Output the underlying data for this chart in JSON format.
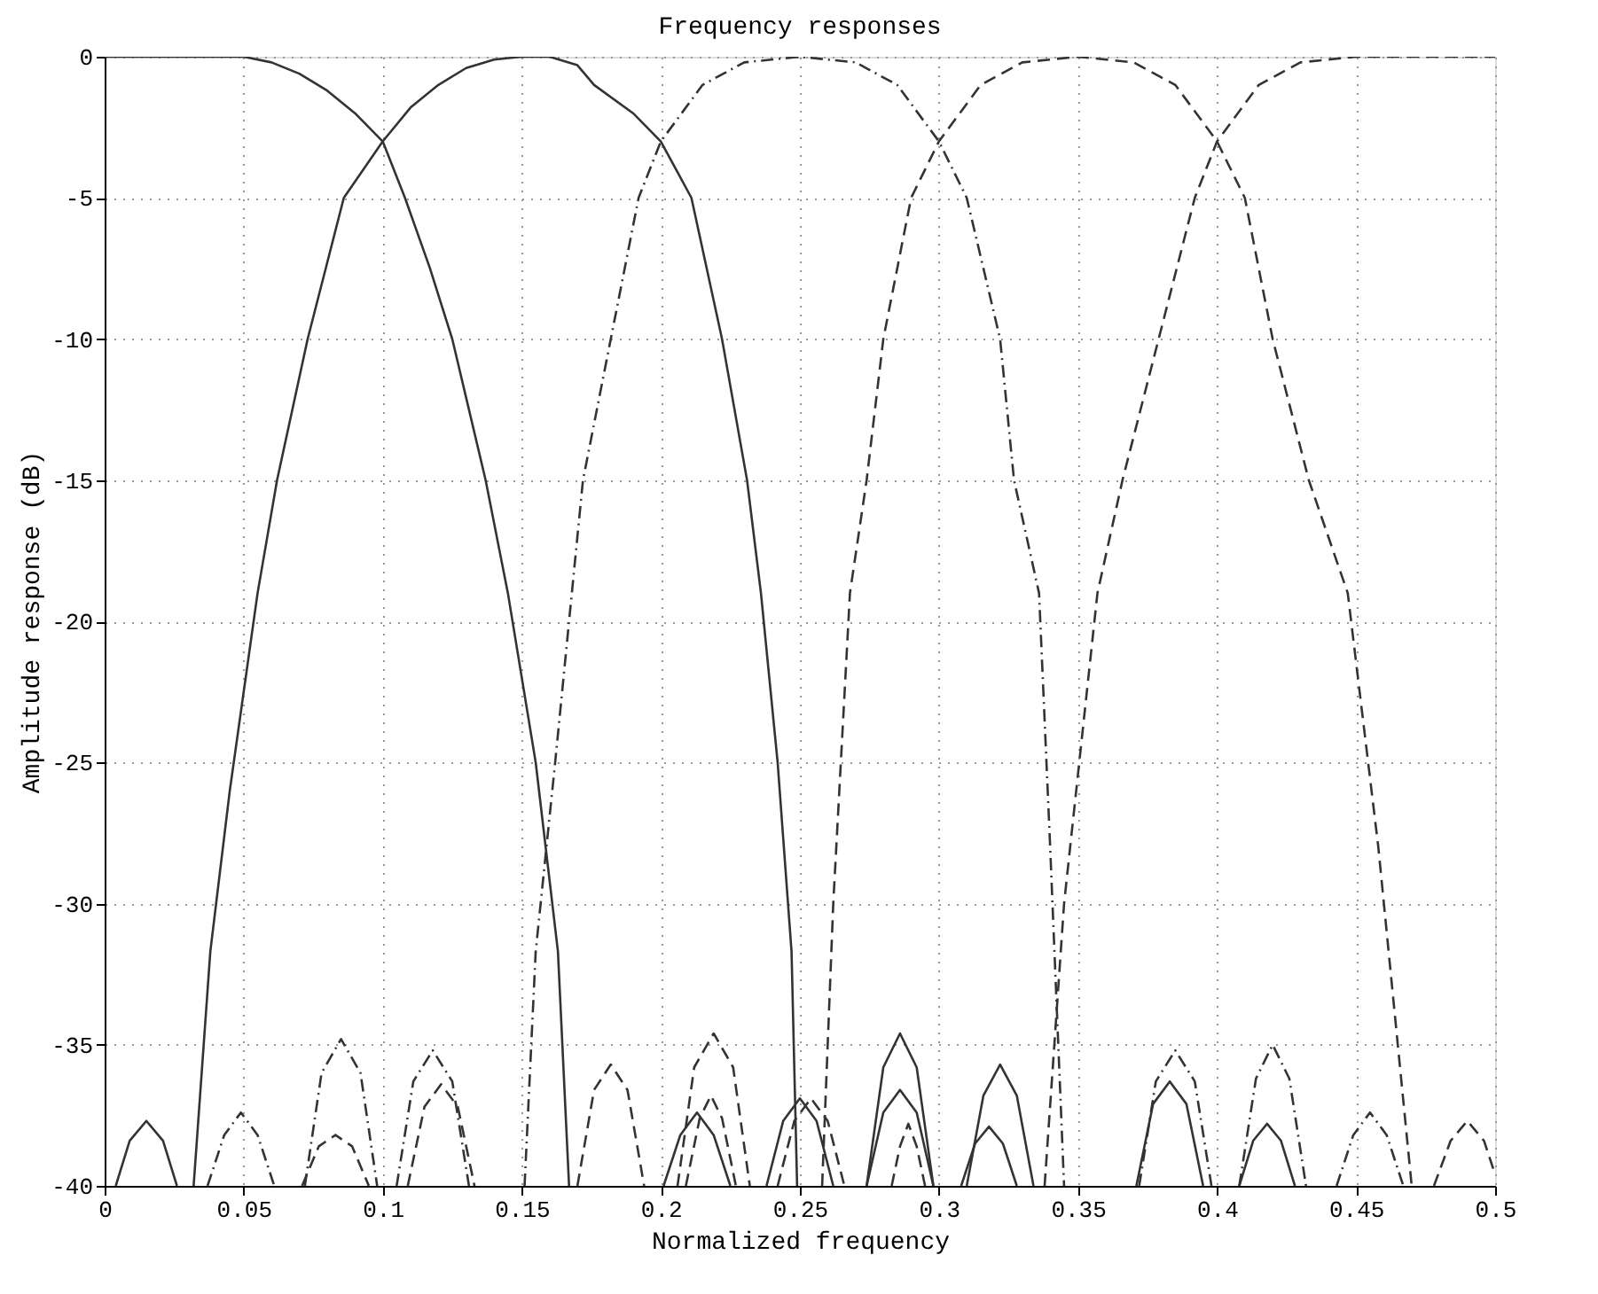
{
  "chart_data": {
    "type": "line",
    "title": "Frequency responses",
    "xlabel": "Normalized frequency",
    "ylabel": "Amplitude response (dB)",
    "xlim": [
      0,
      0.5
    ],
    "ylim": [
      -40,
      0
    ],
    "xticks": [
      0,
      0.05,
      0.1,
      0.15,
      0.2,
      0.25,
      0.3,
      0.35,
      0.4,
      0.45,
      0.5
    ],
    "yticks": [
      -40,
      -35,
      -30,
      -25,
      -20,
      -15,
      -10,
      -5,
      0
    ],
    "grid": true,
    "marker": "none",
    "series": [
      {
        "line_style": "solid",
        "color": "#333333",
        "x": [
          0,
          0.05,
          0.06,
          0.07,
          0.08,
          0.09,
          0.1,
          0.108,
          0.117,
          0.125,
          0.131,
          0.137,
          0.145,
          0.155,
          0.163,
          0.167,
          0.17,
          0.201,
          0.207,
          0.213,
          0.219,
          0.225,
          0.23,
          0.238,
          0.244,
          0.25,
          0.256,
          0.262,
          0.268,
          0.274,
          0.28,
          0.286,
          0.292,
          0.298,
          0.302,
          0.308,
          0.313,
          0.318,
          0.323,
          0.328,
          0.35,
          0.371,
          0.377,
          0.383,
          0.389,
          0.395,
          0.4,
          0.408,
          0.413,
          0.418,
          0.423,
          0.428
        ],
        "values": [
          0,
          0,
          -0.2,
          -0.6,
          -1.2,
          -2,
          -3,
          -5,
          -7.5,
          -10,
          -12.5,
          -15,
          -19,
          -25,
          -31.7,
          -40,
          null,
          -40,
          -38.2,
          -37.4,
          -38.2,
          -40,
          null,
          -40,
          -37.7,
          -36.9,
          -37.7,
          -40,
          null,
          -40,
          -37.4,
          -36.6,
          -37.4,
          -40,
          null,
          -40,
          -38.5,
          -37.9,
          -38.5,
          -40,
          null,
          -40,
          -37.1,
          -36.3,
          -37.1,
          -40,
          null,
          -40,
          -38.4,
          -37.8,
          -38.4,
          -40
        ]
      },
      {
        "line_style": "solid",
        "color": "#333333",
        "x": [
          0.004,
          0.009,
          0.015,
          0.021,
          0.026,
          0.03,
          0.032,
          0.038,
          0.045,
          0.055,
          0.062,
          0.073,
          0.086,
          0.1,
          0.11,
          0.12,
          0.13,
          0.14,
          0.15,
          0.16,
          0.17,
          0.176,
          0.19,
          0.2,
          0.211,
          0.222,
          0.231,
          0.236,
          0.242,
          0.247,
          0.249,
          0.26,
          0.274,
          0.28,
          0.286,
          0.292,
          0.298,
          0.304,
          0.31,
          0.316,
          0.322,
          0.328,
          0.334
        ],
        "values": [
          -40,
          -38.4,
          -37.7,
          -38.4,
          -40,
          null,
          -40,
          -31.7,
          -26,
          -19,
          -15,
          -10,
          -5,
          -3,
          -1.8,
          -1,
          -0.4,
          -0.1,
          0,
          0,
          -0.3,
          -1,
          -2,
          -3,
          -5,
          -10,
          -15,
          -19,
          -25,
          -31.7,
          -40,
          null,
          -40,
          -35.8,
          -34.6,
          -35.8,
          -40,
          null,
          -40,
          -36.8,
          -35.7,
          -36.8,
          -40
        ]
      },
      {
        "line_style": "dashdot",
        "color": "#333333",
        "x": [
          0.037,
          0.043,
          0.049,
          0.055,
          0.061,
          0.066,
          0.072,
          0.078,
          0.085,
          0.092,
          0.098,
          0.1,
          0.105,
          0.111,
          0.118,
          0.125,
          0.131,
          0.14,
          0.151,
          0.155,
          0.162,
          0.168,
          0.172,
          0.182,
          0.192,
          0.2,
          0.215,
          0.23,
          0.25,
          0.27,
          0.285,
          0.3,
          0.31,
          0.322,
          0.327,
          0.336,
          0.34,
          0.345,
          0.35,
          0.372,
          0.378,
          0.385,
          0.392,
          0.398,
          0.4,
          0.408,
          0.414,
          0.42,
          0.426,
          0.432,
          0.437,
          0.443,
          0.449,
          0.455,
          0.461,
          0.467
        ],
        "values": [
          -40,
          -38.2,
          -37.4,
          -38.2,
          -40,
          null,
          -40,
          -36,
          -34.8,
          -36,
          -40,
          null,
          -40,
          -36.3,
          -35.2,
          -36.3,
          -40,
          null,
          -40,
          -31.7,
          -25,
          -19,
          -15,
          -10,
          -5,
          -3,
          -1,
          -0.2,
          0,
          -0.2,
          -1,
          -3,
          -5,
          -10,
          -15,
          -19,
          -28,
          -40,
          null,
          -40,
          -36.3,
          -35.2,
          -36.3,
          -40,
          null,
          -40,
          -36.2,
          -35,
          -36.2,
          -40,
          null,
          -40,
          -38.2,
          -37.4,
          -38.2,
          -40
        ]
      },
      {
        "line_style": "dashed",
        "color": "#333333",
        "x": [
          0.071,
          0.077,
          0.083,
          0.089,
          0.095,
          0.1,
          0.109,
          0.115,
          0.121,
          0.127,
          0.133,
          0.15,
          0.17,
          0.176,
          0.182,
          0.188,
          0.194,
          0.2,
          0.206,
          0.212,
          0.219,
          0.226,
          0.232,
          0.245,
          0.258,
          0.262,
          0.268,
          0.274,
          0.28,
          0.29,
          0.3,
          0.315,
          0.33,
          0.35,
          0.37,
          0.385,
          0.4,
          0.41,
          0.42,
          0.433,
          0.447,
          0.458,
          0.47,
          0.475,
          0.478,
          0.484,
          0.49,
          0.496,
          0.5
        ],
        "values": [
          -40,
          -38.6,
          -38.2,
          -38.6,
          -40,
          null,
          -40,
          -37.2,
          -36.4,
          -37.2,
          -40,
          null,
          -40,
          -36.6,
          -35.7,
          -36.6,
          -40,
          null,
          -40,
          -35.8,
          -34.6,
          -35.8,
          -40,
          null,
          -40,
          -30,
          -19,
          -15,
          -10,
          -5,
          -3,
          -1,
          -0.2,
          0,
          -0.2,
          -1,
          -3,
          -5,
          -10,
          -15,
          -19,
          -28,
          -40,
          null,
          -40,
          -38.4,
          -37.7,
          -38.4,
          -39.6
        ]
      },
      {
        "line_style": "dashed",
        "color": "#333333",
        "x": [
          0.209,
          0.214,
          0.218,
          0.222,
          0.227,
          0.235,
          0.242,
          0.248,
          0.254,
          0.26,
          0.266,
          0.27,
          0.283,
          0.286,
          0.289,
          0.292,
          0.295,
          0.31,
          0.338,
          0.345,
          0.357,
          0.366,
          0.379,
          0.392,
          0.4,
          0.415,
          0.43,
          0.45,
          0.5
        ],
        "values": [
          -40,
          -37.6,
          -36.8,
          -37.6,
          -40,
          null,
          -40,
          -37.7,
          -36.9,
          -37.7,
          -40,
          null,
          -40,
          -38.6,
          -37.8,
          -38.6,
          -40,
          null,
          -40,
          -30,
          -19,
          -15,
          -10,
          -5,
          -3,
          -1,
          -0.2,
          0,
          0
        ]
      }
    ]
  }
}
